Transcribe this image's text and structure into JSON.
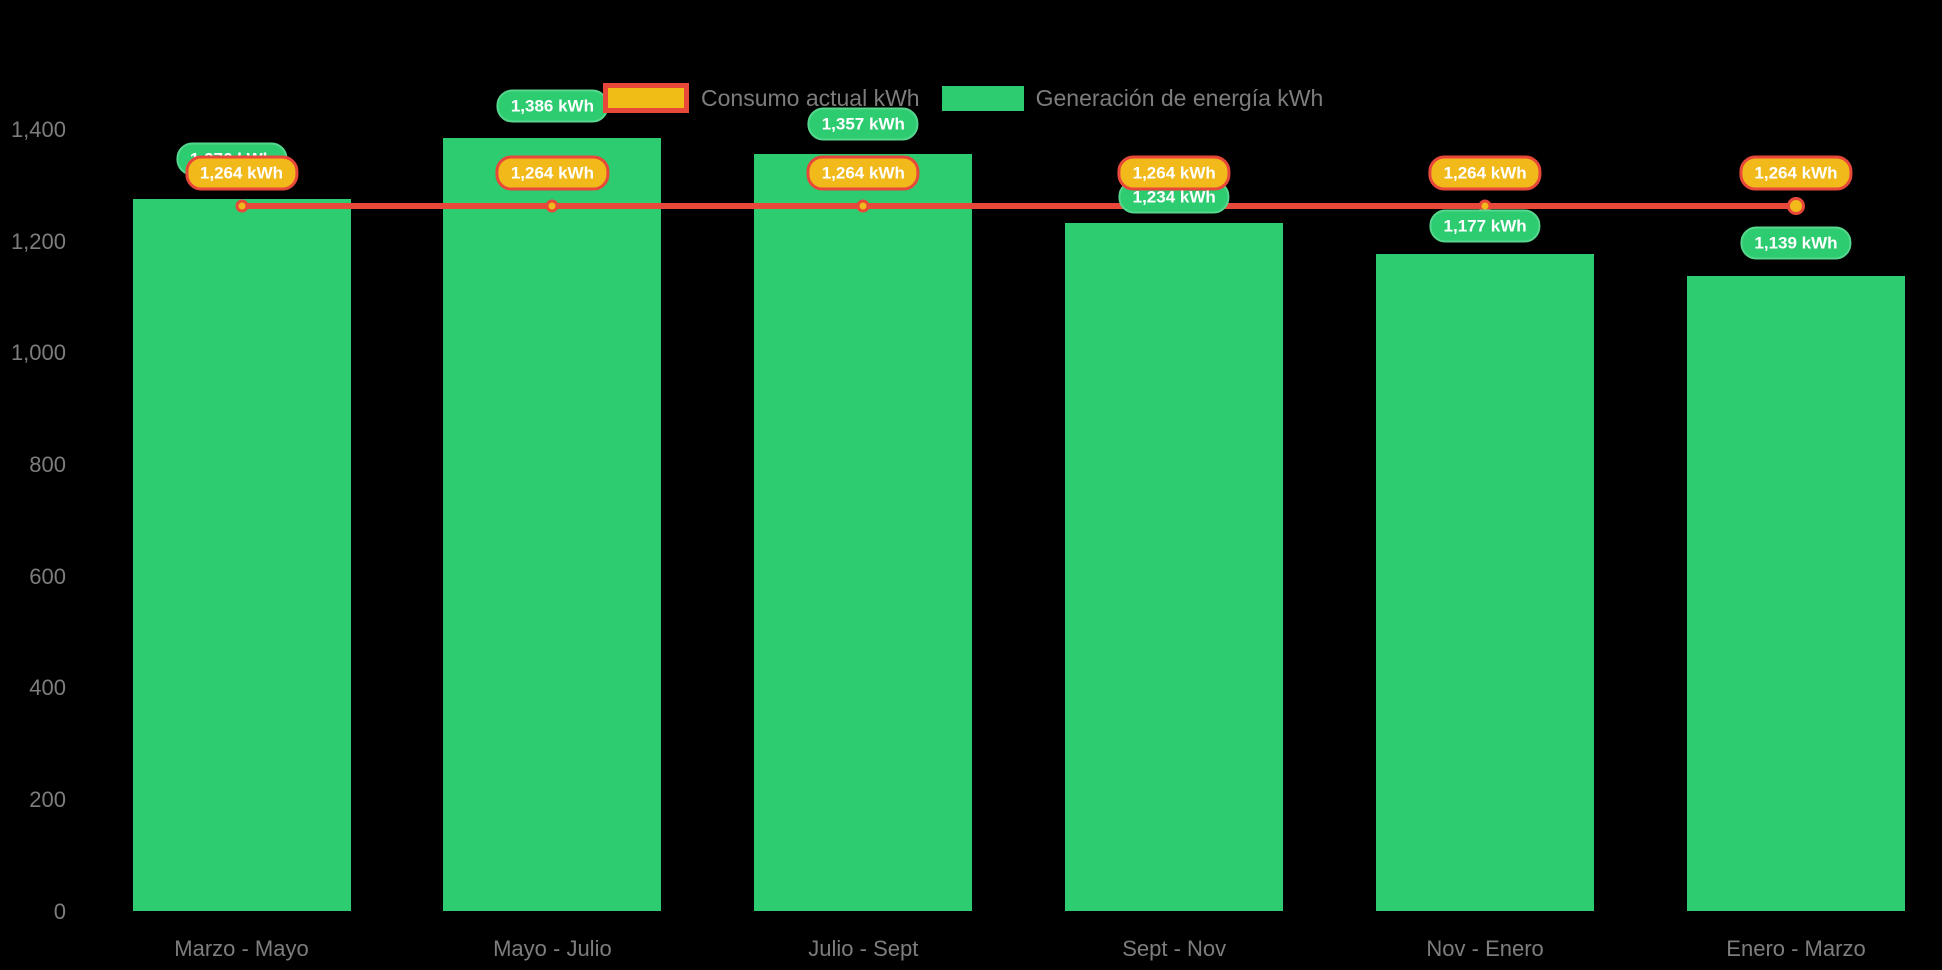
{
  "chart_data": {
    "type": "bar",
    "title": "",
    "categories": [
      "Marzo - Mayo",
      "Mayo - Julio",
      "Julio - Sept",
      "Sept - Nov",
      "Nov - Enero",
      "Enero - Marzo"
    ],
    "series": [
      {
        "name": "Consumo actual kWh",
        "type": "line",
        "color": "#e8483a",
        "point_color": "#f2b91a",
        "values": [
          1264,
          1264,
          1264,
          1264,
          1264,
          1264
        ],
        "data_labels": [
          "1,264 kWh",
          "1,264 kWh",
          "1,264 kWh",
          "1,264 kWh",
          "1,264 kWh",
          "1,264 kWh"
        ]
      },
      {
        "name": "Generación de energía kWh",
        "type": "bar",
        "color": "#2ecc71",
        "values": [
          1276,
          1386,
          1357,
          1234,
          1177,
          1139
        ],
        "data_labels": [
          "1,276 kWh",
          "1,386 kWh",
          "1,357 kWh",
          "1,234 kWh",
          "1,177 kWh",
          "1,139 kWh"
        ]
      }
    ],
    "ylim": [
      0,
      1400
    ],
    "yticks": [
      0,
      200,
      400,
      600,
      800,
      1000,
      1200,
      1400
    ],
    "ytick_labels": [
      "0",
      "200",
      "400",
      "600",
      "800",
      "1,000",
      "1,200",
      "1,400"
    ],
    "grid": false,
    "legend_position": "top",
    "green_badge_y": [
      159,
      106,
      124,
      197,
      226,
      243
    ],
    "green_badge_dx": [
      -10,
      0,
      0,
      0,
      0,
      0
    ],
    "green_badge_behind": [
      true,
      false,
      false,
      true,
      false,
      false
    ]
  },
  "legend": {
    "consumo_label": "Consumo actual kWh",
    "generacion_label": "Generación de energía kWh"
  },
  "colors": {
    "background": "#000000",
    "bar_green": "#2ecc71",
    "line_red": "#e8483a",
    "badge_orange": "#f2b91a",
    "axis_text": "#7d7d7d",
    "badge_text": "#ffffff"
  }
}
